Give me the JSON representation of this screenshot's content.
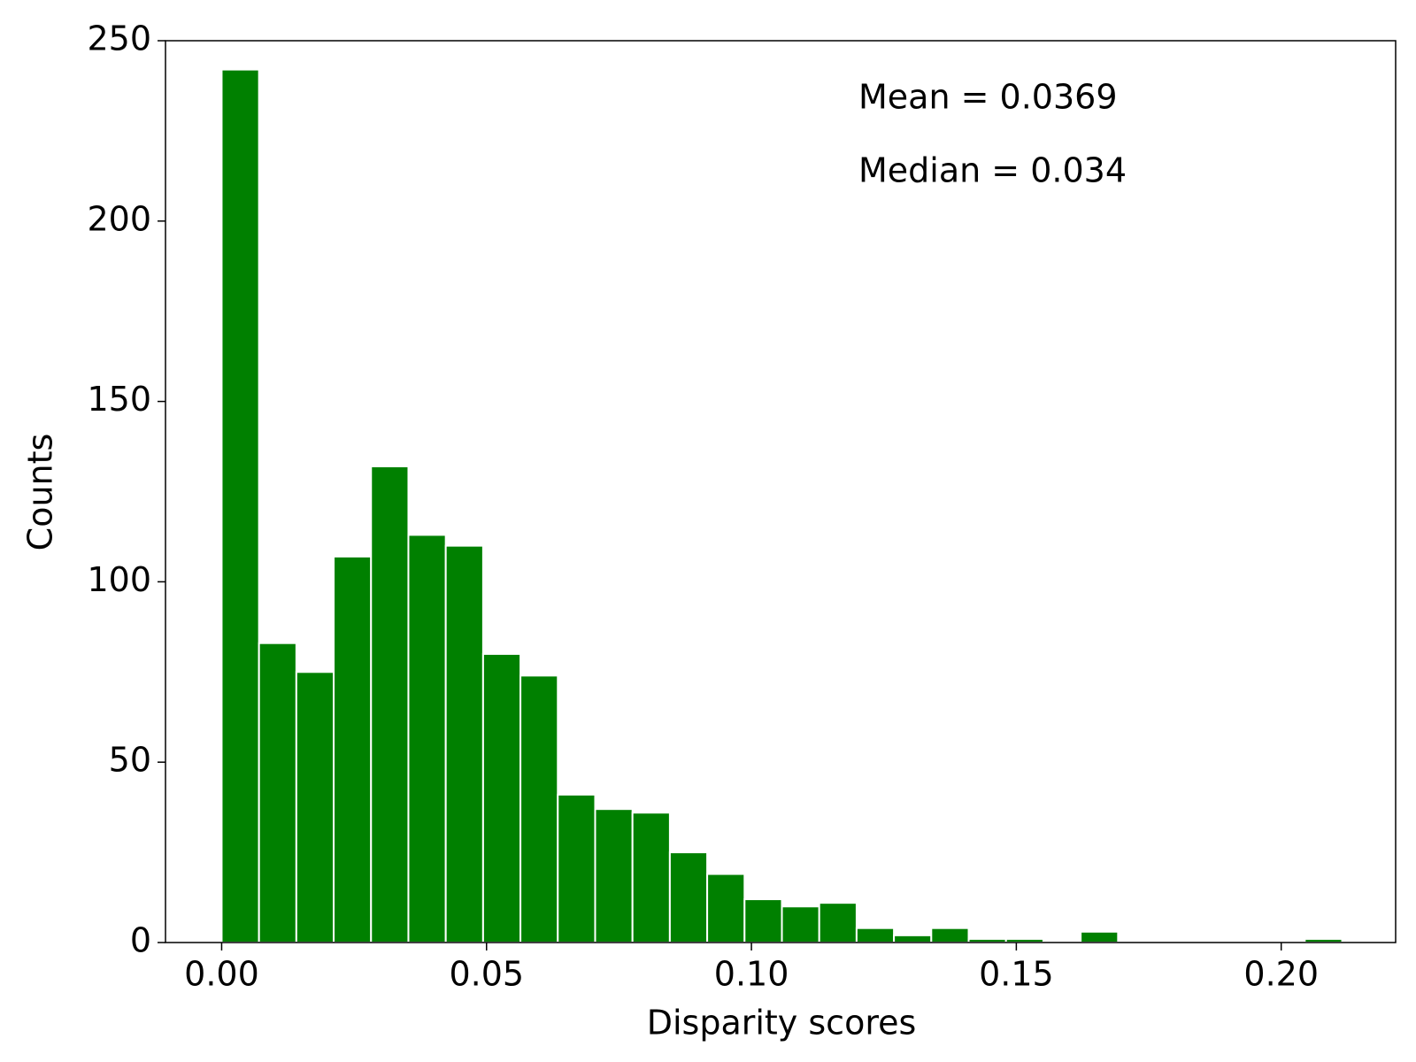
{
  "chart_data": {
    "type": "histogram",
    "xlabel": "Disparity scores",
    "ylabel": "Counts",
    "annotations": [
      "Mean = 0.0369",
      "Median = 0.034"
    ],
    "bins": [
      0.0,
      0.00705,
      0.0141,
      0.02115,
      0.0282,
      0.03525,
      0.0423,
      0.04935,
      0.0564,
      0.06345,
      0.0705,
      0.07755,
      0.0846,
      0.09165,
      0.0987,
      0.10575,
      0.1128,
      0.11985,
      0.1269,
      0.13395,
      0.141,
      0.14805,
      0.1551,
      0.16215,
      0.1692,
      0.17625,
      0.1833,
      0.19035,
      0.1974,
      0.20445,
      0.2115
    ],
    "values": [
      242,
      83,
      75,
      107,
      132,
      113,
      110,
      80,
      74,
      41,
      37,
      36,
      25,
      19,
      12,
      10,
      11,
      4,
      2,
      4,
      1,
      1,
      0,
      3,
      0,
      0,
      0,
      0,
      0,
      1
    ],
    "color": "#008000",
    "xlim": [
      -0.0106,
      0.2216
    ],
    "ylim": [
      0,
      250
    ],
    "xticks": [
      {
        "value": 0,
        "label": "0.00"
      },
      {
        "value": 0.05,
        "label": "0.05"
      },
      {
        "value": 0.1,
        "label": "0.10"
      },
      {
        "value": 0.15,
        "label": "0.15"
      },
      {
        "value": 0.2,
        "label": "0.20"
      }
    ],
    "yticks": [
      0,
      50,
      100,
      150,
      200,
      250
    ]
  }
}
